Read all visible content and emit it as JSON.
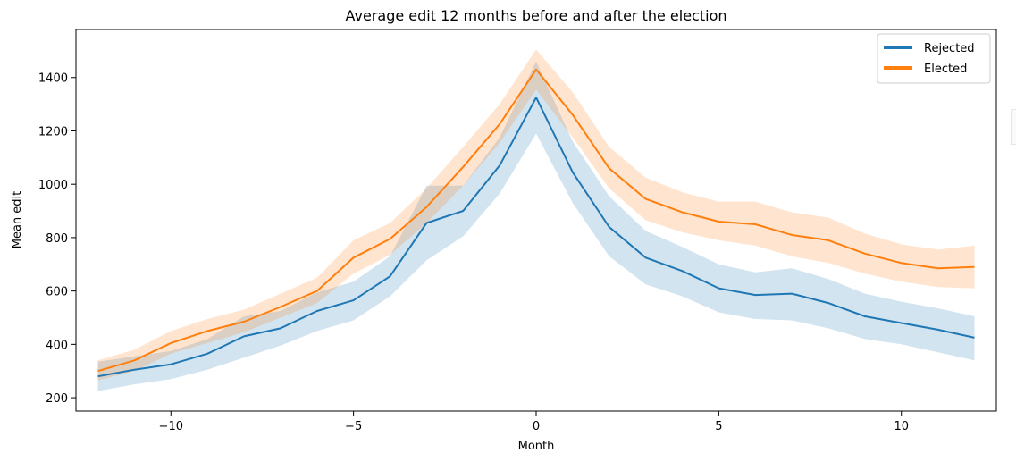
{
  "chart_data": {
    "type": "line",
    "title": "Average edit 12 months before and after the election",
    "xlabel": "Month",
    "ylabel": "Mean edit",
    "xlim": [
      -12.6,
      12.6
    ],
    "ylim": [
      150,
      1580
    ],
    "xticks": [
      -10,
      -5,
      0,
      5,
      10
    ],
    "xtick_labels": [
      "−10",
      "−5",
      "0",
      "5",
      "10"
    ],
    "yticks": [
      200,
      400,
      600,
      800,
      1000,
      1200,
      1400
    ],
    "yticks_labels": [
      "200",
      "400",
      "600",
      "800",
      "1000",
      "1200",
      "1400"
    ],
    "legend_position": "top-right",
    "x": [
      -12,
      -11,
      -10,
      -9,
      -8,
      -7,
      -6,
      -5,
      -4,
      -3,
      -2,
      -1,
      0,
      1,
      2,
      3,
      4,
      5,
      6,
      7,
      8,
      9,
      10,
      11,
      12
    ],
    "series": [
      {
        "name": "Rejected",
        "color": "#1f77b4",
        "values": [
          280,
          305,
          325,
          365,
          430,
          460,
          525,
          565,
          655,
          855,
          900,
          1070,
          1325,
          1045,
          840,
          725,
          675,
          610,
          585,
          590,
          555,
          505,
          480,
          455,
          425
        ],
        "lower": [
          225,
          250,
          270,
          305,
          350,
          395,
          450,
          490,
          580,
          715,
          805,
          965,
          1190,
          930,
          730,
          625,
          580,
          520,
          495,
          490,
          460,
          420,
          400,
          370,
          340
        ],
        "upper": [
          335,
          355,
          375,
          420,
          505,
          525,
          595,
          635,
          730,
          995,
          995,
          1175,
          1460,
          1160,
          955,
          825,
          765,
          700,
          670,
          685,
          645,
          590,
          560,
          535,
          505
        ]
      },
      {
        "name": "Elected",
        "color": "#ff7f0e",
        "values": [
          300,
          340,
          405,
          450,
          485,
          540,
          600,
          725,
          795,
          915,
          1065,
          1225,
          1430,
          1260,
          1060,
          945,
          895,
          860,
          850,
          810,
          790,
          740,
          705,
          685,
          690
        ],
        "lower": [
          265,
          300,
          365,
          405,
          445,
          500,
          555,
          665,
          735,
          855,
          995,
          1155,
          1355,
          1175,
          985,
          865,
          820,
          790,
          770,
          730,
          705,
          665,
          635,
          615,
          610
        ],
        "upper": [
          340,
          380,
          450,
          495,
          530,
          590,
          650,
          790,
          855,
          985,
          1140,
          1300,
          1505,
          1345,
          1140,
          1025,
          970,
          935,
          935,
          895,
          875,
          815,
          775,
          755,
          770
        ]
      }
    ]
  }
}
